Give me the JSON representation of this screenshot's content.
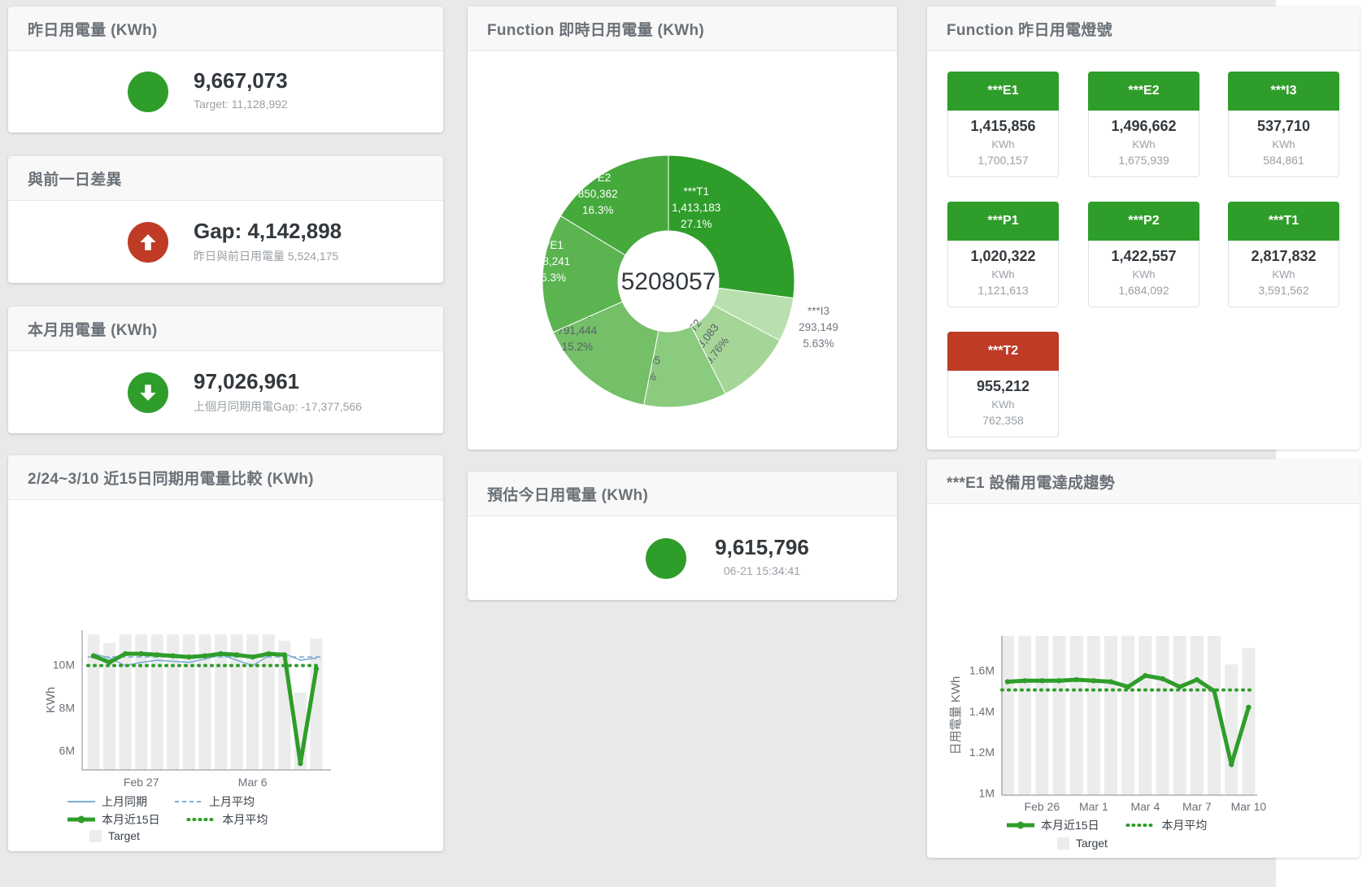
{
  "page_bg": "#e9e9e9",
  "colors": {
    "green": "#2f9d2a",
    "red": "#bf3b26",
    "blue": "#7aaed6",
    "target_bar": "#ececec"
  },
  "kpis": {
    "yesterday": {
      "title": "昨日用電量 (KWh)",
      "value": "9,667,073",
      "subtitle": "Target: 11,128,992",
      "color": "#2f9d2a",
      "icon": "none"
    },
    "day_gap": {
      "title": "與前一日差異",
      "value": "Gap: 4,142,898",
      "subtitle": "昨日與前日用電量 5,524,175",
      "color": "#bf3b26",
      "icon": "arrow-up"
    },
    "month": {
      "title": "本月用電量 (KWh)",
      "value": "97,026,961",
      "subtitle": "上個月同期用電Gap: -17,377,566",
      "color": "#2f9d2a",
      "icon": "arrow-down"
    },
    "forecast": {
      "title": "預估今日用電量 (KWh)",
      "value": "9,615,796",
      "subtitle": "06-21 15:34:41",
      "color": "#2f9d2a",
      "icon": "none"
    }
  },
  "lights": {
    "title": "Function 昨日用電燈號",
    "unit": "KWh",
    "tiles": [
      {
        "label": "***E1",
        "value": "1,415,856",
        "target": "1,700,157",
        "color": "#2f9d2a"
      },
      {
        "label": "***E2",
        "value": "1,496,662",
        "target": "1,675,939",
        "color": "#2f9d2a"
      },
      {
        "label": "***I3",
        "value": "537,710",
        "target": "584,861",
        "color": "#2f9d2a"
      },
      {
        "label": "***P1",
        "value": "1,020,322",
        "target": "1,121,613",
        "color": "#2f9d2a"
      },
      {
        "label": "***P2",
        "value": "1,422,557",
        "target": "1,684,092",
        "color": "#2f9d2a"
      },
      {
        "label": "***T1",
        "value": "2,817,832",
        "target": "3,591,562",
        "color": "#2f9d2a"
      },
      {
        "label": "***T2",
        "value": "955,212",
        "target": "762,358",
        "color": "#bf3b26"
      }
    ]
  },
  "chart_data": [
    {
      "type": "pie",
      "name": "realtime_daily_usage_donut",
      "title": "Function 即時日用電量 (KWh)",
      "center_total": "5208057",
      "slices": [
        {
          "label": "***T1",
          "value": 1413183,
          "display": "1,413,183",
          "pct": "27.1%",
          "share": 27.1,
          "color": "#2f9d2a"
        },
        {
          "label": "***I3",
          "value": 293149,
          "display": "293,149",
          "pct": "5.63%",
          "share": 5.63,
          "color": "#b9dfae"
        },
        {
          "label": "***T2",
          "value": 508083,
          "display": "508,083",
          "pct": "9.76%",
          "share": 9.76,
          "color": "#a5d698"
        },
        {
          "label": "***P1",
          "value": 553595,
          "display": "553,595",
          "pct": "10.6%",
          "share": 10.6,
          "color": "#8bcb7f"
        },
        {
          "label": "***P2",
          "value": 791444,
          "display": "791,444",
          "pct": "15.2%",
          "share": 15.2,
          "color": "#74bf68"
        },
        {
          "label": "***E1",
          "value": 798241,
          "display": "798,241",
          "pct": "15.3%",
          "share": 15.3,
          "color": "#5bb450"
        },
        {
          "label": "***E2",
          "value": 850362,
          "display": "850,362",
          "pct": "16.3%",
          "share": 16.3,
          "color": "#45a93c"
        }
      ]
    },
    {
      "type": "line",
      "name": "compare_15day",
      "title": "2/24~3/10 近15日同期用電量比較 (KWh)",
      "ylabel": "KWh",
      "points": 15,
      "x_ticks": [
        {
          "index": 3,
          "label": "Feb 27"
        },
        {
          "index": 10,
          "label": "Mar 6"
        }
      ],
      "y_ticks": [
        {
          "value": 6,
          "label": "6M"
        },
        {
          "value": 8,
          "label": "8M"
        },
        {
          "value": 10,
          "label": "10M"
        }
      ],
      "y_range": [
        5.1,
        11.6
      ],
      "target_bars": [
        11.4,
        11.0,
        11.4,
        11.4,
        11.4,
        11.4,
        11.4,
        11.4,
        11.4,
        11.4,
        11.4,
        11.4,
        11.1,
        8.7,
        11.2
      ],
      "series": [
        {
          "name": "上月同期",
          "style": "solid",
          "color": "#7aaed6",
          "width": 1.6,
          "values": [
            10.5,
            10.3,
            9.95,
            10.1,
            10.2,
            10.15,
            10.1,
            10.25,
            10.45,
            10.2,
            9.95,
            10.4,
            10.5,
            10.2,
            10.3
          ]
        },
        {
          "name": "上月平均",
          "style": "dashed",
          "color": "#7aaed6",
          "width": 1.6,
          "value": 10.35
        },
        {
          "name": "本月近15日",
          "style": "thick",
          "color": "#2f9d2a",
          "width": 5,
          "values": [
            10.4,
            10.1,
            10.5,
            10.5,
            10.45,
            10.4,
            10.35,
            10.4,
            10.5,
            10.45,
            10.35,
            10.5,
            10.45,
            5.4,
            9.8
          ]
        },
        {
          "name": "本月平均",
          "style": "dotted",
          "color": "#2f9d2a",
          "width": 3.5,
          "value": 9.95
        },
        {
          "name": "Target",
          "style": "bar",
          "color": "#ececec"
        }
      ],
      "legend_rows": [
        [
          0,
          1
        ],
        [
          2,
          3
        ],
        [
          4
        ]
      ]
    },
    {
      "type": "line",
      "name": "e1_device_trend",
      "title": "***E1 設備用電達成趨勢",
      "ylabel": "日用電量 KWh",
      "points": 15,
      "x_ticks": [
        {
          "index": 2,
          "label": "Feb 26"
        },
        {
          "index": 5,
          "label": "Mar 1"
        },
        {
          "index": 8,
          "label": "Mar 4"
        },
        {
          "index": 11,
          "label": "Mar 7"
        },
        {
          "index": 14,
          "label": "Mar 10"
        }
      ],
      "y_ticks": [
        {
          "value": 1,
          "label": "1M"
        },
        {
          "value": 1.2,
          "label": "1.2M"
        },
        {
          "value": 1.4,
          "label": "1.4M"
        },
        {
          "value": 1.6,
          "label": "1.6M"
        }
      ],
      "y_range": [
        0.99,
        1.77
      ],
      "target_bars": [
        1.77,
        1.77,
        1.77,
        1.77,
        1.77,
        1.77,
        1.77,
        1.77,
        1.77,
        1.77,
        1.77,
        1.77,
        1.77,
        1.63,
        1.71
      ],
      "series": [
        {
          "name": "本月近15日",
          "style": "thick",
          "color": "#2f9d2a",
          "width": 5,
          "values": [
            1.545,
            1.55,
            1.55,
            1.55,
            1.555,
            1.55,
            1.545,
            1.52,
            1.575,
            1.56,
            1.52,
            1.555,
            1.5,
            1.14,
            1.42
          ]
        },
        {
          "name": "本月平均",
          "style": "dotted",
          "color": "#2f9d2a",
          "width": 3.5,
          "value": 1.505
        },
        {
          "name": "Target",
          "style": "bar",
          "color": "#ececec"
        }
      ],
      "legend_rows": [
        [
          0,
          1
        ],
        [
          2
        ]
      ]
    }
  ]
}
